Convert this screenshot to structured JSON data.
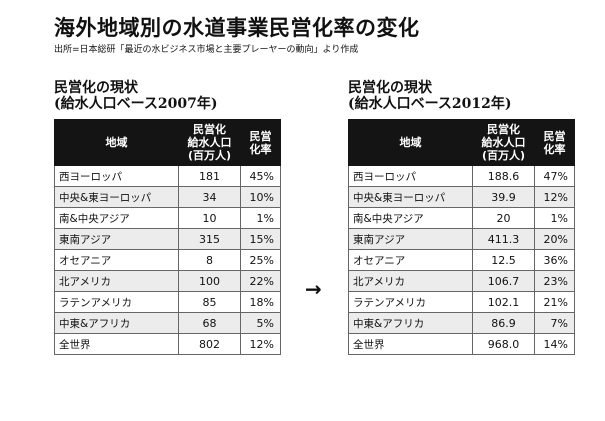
{
  "title": "海外地域別の水道事業民営化率の変化",
  "source": "出所=日本総研「最近の水ビジネス市場と主要プレーヤーの動向」より作成",
  "arrow": "→",
  "headers": {
    "region": "地域",
    "population": [
      "民営化",
      "給水人口",
      "(百万人)"
    ],
    "rate": [
      "民営",
      "化率"
    ]
  },
  "table2007": {
    "title_line1": "民営化の現状",
    "title_line2": "(給水人口ベース2007年)",
    "rows": [
      {
        "region": "西ヨーロッパ",
        "population": "181",
        "rate": "45%"
      },
      {
        "region": "中央&東ヨーロッパ",
        "population": "34",
        "rate": "10%"
      },
      {
        "region": "南&中央アジア",
        "population": "10",
        "rate": "1%"
      },
      {
        "region": "東南アジア",
        "population": "315",
        "rate": "15%"
      },
      {
        "region": "オセアニア",
        "population": "8",
        "rate": "25%"
      },
      {
        "region": "北アメリカ",
        "population": "100",
        "rate": "22%"
      },
      {
        "region": "ラテンアメリカ",
        "population": "85",
        "rate": "18%"
      },
      {
        "region": "中東&アフリカ",
        "population": "68",
        "rate": "5%"
      },
      {
        "region": "全世界",
        "population": "802",
        "rate": "12%"
      }
    ]
  },
  "table2012": {
    "title_line1": "民営化の現状",
    "title_line2": "(給水人口ベース2012年)",
    "rows": [
      {
        "region": "西ヨーロッパ",
        "population": "188.6",
        "rate": "47%"
      },
      {
        "region": "中央&東ヨーロッパ",
        "population": "39.9",
        "rate": "12%"
      },
      {
        "region": "南&中央アジア",
        "population": "20",
        "rate": "1%"
      },
      {
        "region": "東南アジア",
        "population": "411.3",
        "rate": "20%"
      },
      {
        "region": "オセアニア",
        "population": "12.5",
        "rate": "36%"
      },
      {
        "region": "北アメリカ",
        "population": "106.7",
        "rate": "23%"
      },
      {
        "region": "ラテンアメリカ",
        "population": "102.1",
        "rate": "21%"
      },
      {
        "region": "中東&アフリカ",
        "population": "86.9",
        "rate": "7%"
      },
      {
        "region": "全世界",
        "population": "968.0",
        "rate": "14%"
      }
    ]
  }
}
